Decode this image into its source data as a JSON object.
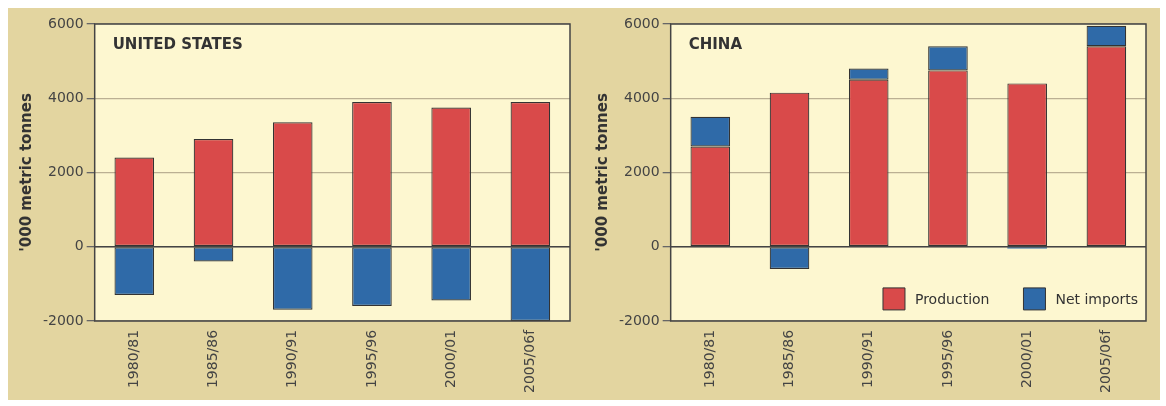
{
  "chart_data": [
    {
      "type": "bar",
      "title": "UNITED STATES",
      "ylabel": "'000 metric tonnes",
      "categories": [
        "1980/81",
        "1985/86",
        "1990/91",
        "1995/96",
        "2000/01",
        "2005/06f"
      ],
      "stacked": true,
      "series": [
        {
          "color": "#d94a4a",
          "values": [
            2400,
            2900,
            3350,
            3900,
            3750,
            3900
          ]
        },
        {
          "color": "#2f6aa8",
          "values": [
            -1300,
            -400,
            -1700,
            -1600,
            -1450,
            -2000
          ]
        }
      ],
      "ylim": [
        -2000,
        6000
      ],
      "yticks": [
        -2000,
        0,
        2000,
        4000,
        6000
      ],
      "grid": "y",
      "legend": false
    },
    {
      "type": "bar",
      "title": "CHINA",
      "ylabel": "'000 metric tonnes",
      "categories": [
        "1980/81",
        "1985/86",
        "1990/91",
        "1995/96",
        "2000/01",
        "2005/06f"
      ],
      "stacked": true,
      "series": [
        {
          "name": "Production",
          "color": "#d94a4a",
          "values": [
            2700,
            4150,
            4500,
            4750,
            4400,
            5400
          ]
        },
        {
          "name": "Net imports",
          "color": "#2f6aa8",
          "values": [
            800,
            -600,
            300,
            650,
            -50,
            550
          ]
        }
      ],
      "ylim": [
        -2000,
        6000
      ],
      "yticks": [
        -2000,
        0,
        2000,
        4000,
        6000
      ],
      "grid": "y",
      "legend": "bottom right"
    }
  ]
}
